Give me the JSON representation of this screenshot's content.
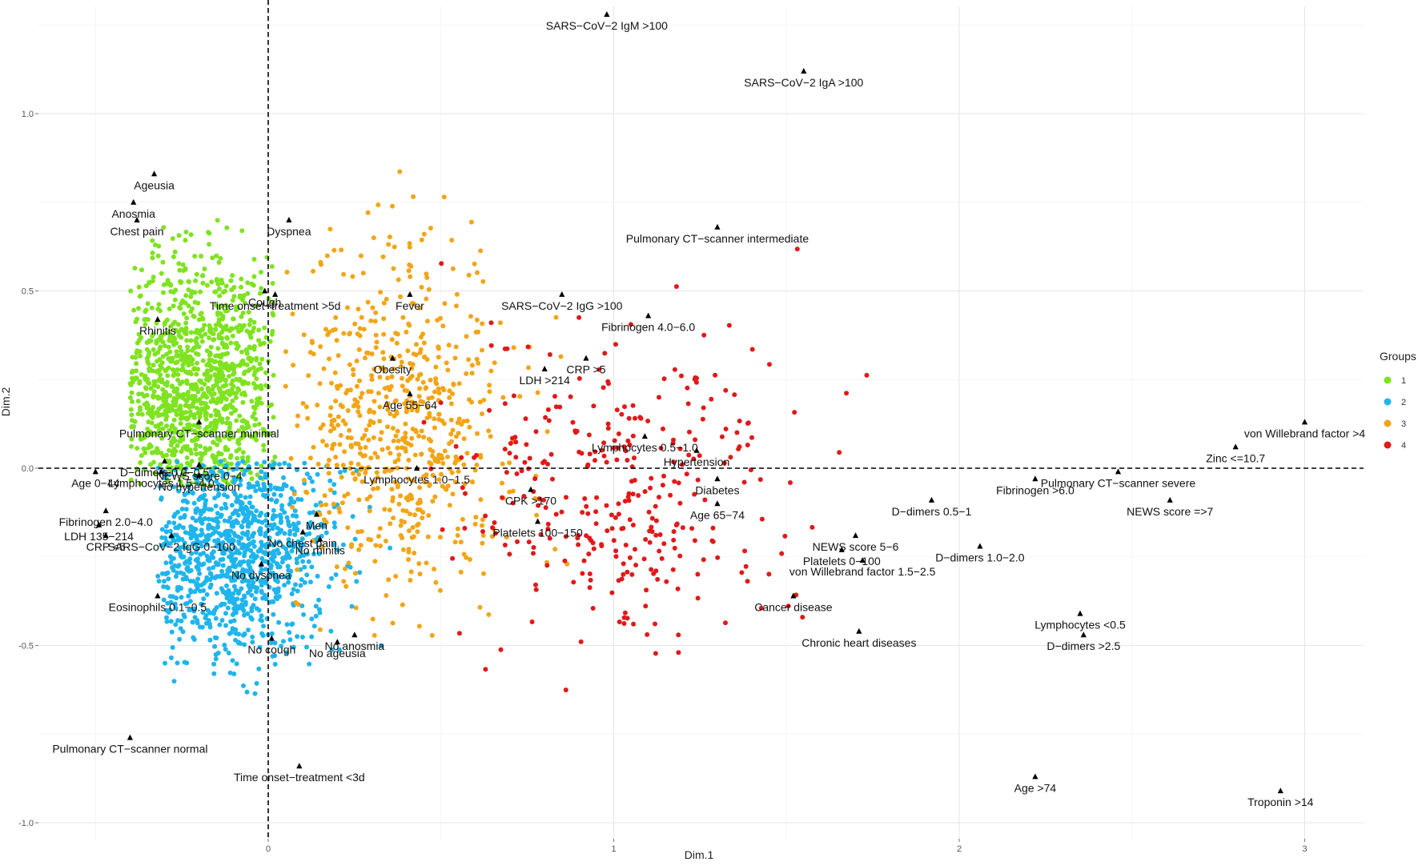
{
  "chart_data": {
    "type": "scatter",
    "xlabel": "Dim.1",
    "ylabel": "Dim.2",
    "xlim": [
      -0.72,
      3.2
    ],
    "ylim": [
      -1.02,
      1.28
    ],
    "xticks": [
      0,
      1,
      2,
      3
    ],
    "yticks": [
      1.0,
      0.5,
      0.0,
      -0.5,
      -1.0
    ],
    "xtick_labels": [
      "0",
      "1",
      "2",
      "3"
    ],
    "ytick_labels": [
      "1.0",
      "0.5",
      "0.0",
      "-0.5",
      "-1.0"
    ],
    "grid": true,
    "reference_lines": {
      "x": 0,
      "y": 0,
      "style": "dashed"
    },
    "legend": {
      "title": "Groups",
      "position": "right",
      "entries": [
        {
          "label": "1",
          "color": "#7ee320"
        },
        {
          "label": "2",
          "color": "#1fb5ec"
        },
        {
          "label": "3",
          "color": "#f2a516"
        },
        {
          "label": "4",
          "color": "#e11919"
        }
      ]
    },
    "group_clouds": [
      {
        "group": "1",
        "color": "#7ee320",
        "n": 1100,
        "center": [
          -0.22,
          0.22
        ],
        "spread": [
          0.14,
          0.18
        ],
        "x_range": [
          -0.4,
          0.02
        ],
        "y_range": [
          -0.05,
          0.7
        ]
      },
      {
        "group": "2",
        "color": "#1fb5ec",
        "n": 1000,
        "center": [
          -0.1,
          -0.23
        ],
        "spread": [
          0.15,
          0.15
        ],
        "x_range": [
          -0.32,
          0.38
        ],
        "y_range": [
          -0.67,
          0.02
        ]
      },
      {
        "group": "3",
        "color": "#f2a516",
        "n": 650,
        "center": [
          0.38,
          0.12
        ],
        "spread": [
          0.18,
          0.25
        ],
        "x_range": [
          0.05,
          0.92
        ],
        "y_range": [
          -0.48,
          0.94
        ]
      },
      {
        "group": "4",
        "color": "#e11919",
        "n": 330,
        "center": [
          1.05,
          -0.05
        ],
        "spread": [
          0.26,
          0.22
        ],
        "x_range": [
          0.45,
          1.98
        ],
        "y_range": [
          -0.65,
          0.72
        ]
      }
    ],
    "annotations": [
      {
        "label": "SARS−CoV−2 IgM >100",
        "x": 0.98,
        "y": 1.28
      },
      {
        "label": "SARS−CoV−2 IgA >100",
        "x": 1.55,
        "y": 1.12
      },
      {
        "label": "Ageusia",
        "x": -0.33,
        "y": 0.83
      },
      {
        "label": "Anosmia",
        "x": -0.39,
        "y": 0.75
      },
      {
        "label": "Chest pain",
        "x": -0.38,
        "y": 0.7
      },
      {
        "label": "Dyspnea",
        "x": 0.06,
        "y": 0.7
      },
      {
        "label": "Pulmonary CT−scanner intermediate",
        "x": 1.3,
        "y": 0.68
      },
      {
        "label": "Cough",
        "x": -0.01,
        "y": 0.5
      },
      {
        "label": "Time onset−treatment >5d",
        "x": 0.02,
        "y": 0.49
      },
      {
        "label": "Fever",
        "x": 0.41,
        "y": 0.49
      },
      {
        "label": "Rhinitis",
        "x": -0.32,
        "y": 0.42
      },
      {
        "label": "SARS−CoV−2 IgG >100",
        "x": 0.85,
        "y": 0.49
      },
      {
        "label": "Fibrinogen 4.0−6.0",
        "x": 1.1,
        "y": 0.43
      },
      {
        "label": "CRP >5",
        "x": 0.92,
        "y": 0.31
      },
      {
        "label": "Obesity",
        "x": 0.36,
        "y": 0.31
      },
      {
        "label": "LDH >214",
        "x": 0.8,
        "y": 0.28
      },
      {
        "label": "Age 55−64",
        "x": 0.41,
        "y": 0.21
      },
      {
        "label": "Lymphocytes  0.5−1.0",
        "x": 1.09,
        "y": 0.09
      },
      {
        "label": "Pulmonary CT−scanner minimal",
        "x": -0.2,
        "y": 0.13
      },
      {
        "label": "D−dimers 0.0−0.5",
        "x": -0.3,
        "y": 0.02
      },
      {
        "label": "NEWS score 0−4",
        "x": -0.2,
        "y": 0.01
      },
      {
        "label": "Lymphocytes  1.0−1.5",
        "x": 0.43,
        "y": 0.0
      },
      {
        "label": "Hypertension",
        "x": 1.24,
        "y": 0.05
      },
      {
        "label": "Age 0−44",
        "x": -0.5,
        "y": -0.01
      },
      {
        "label": "Lymphocytes  1.5−4.0",
        "x": -0.31,
        "y": -0.01
      },
      {
        "label": "No hypertension",
        "x": -0.2,
        "y": -0.02
      },
      {
        "label": "Diabetes",
        "x": 1.3,
        "y": -0.03
      },
      {
        "label": "CPK >170",
        "x": 0.76,
        "y": -0.06
      },
      {
        "label": "Age 65−74",
        "x": 1.3,
        "y": -0.1
      },
      {
        "label": "Fibrinogen 2.0−4.0",
        "x": -0.47,
        "y": -0.12
      },
      {
        "label": "D−dimers 0.5−1",
        "x": 1.92,
        "y": -0.09
      },
      {
        "label": "Fibrinogen >6.0",
        "x": 2.22,
        "y": -0.03
      },
      {
        "label": "Pulmonary CT−scanner severe",
        "x": 2.46,
        "y": -0.01
      },
      {
        "label": "von Willebrand factor  >4",
        "x": 3.0,
        "y": 0.13
      },
      {
        "label": "Zinc <=10.7",
        "x": 2.8,
        "y": 0.06
      },
      {
        "label": "NEWS score =>7",
        "x": 2.61,
        "y": -0.09
      },
      {
        "label": "Men",
        "x": 0.14,
        "y": -0.13
      },
      {
        "label": "LDH 135−214",
        "x": -0.49,
        "y": -0.16
      },
      {
        "label": "Platelets 100−150",
        "x": 0.78,
        "y": -0.15
      },
      {
        "label": "No chest pain",
        "x": 0.1,
        "y": -0.18
      },
      {
        "label": "CRP <5",
        "x": -0.47,
        "y": -0.19
      },
      {
        "label": "SARS−CoV−2 IgG 0−100",
        "x": -0.28,
        "y": -0.19
      },
      {
        "label": "No rhinitis",
        "x": 0.15,
        "y": -0.2
      },
      {
        "label": "NEWS score 5−6",
        "x": 1.7,
        "y": -0.19
      },
      {
        "label": "D−dimers 1.0−2.0",
        "x": 2.06,
        "y": -0.22
      },
      {
        "label": "Platelets 0−100",
        "x": 1.66,
        "y": -0.23
      },
      {
        "label": "von Willebrand factor 1.5−2.5",
        "x": 1.72,
        "y": -0.26
      },
      {
        "label": "No dyspnea",
        "x": -0.02,
        "y": -0.27
      },
      {
        "label": "Eosinophils  0.1−0.5",
        "x": -0.32,
        "y": -0.36
      },
      {
        "label": "Cancer disease",
        "x": 1.52,
        "y": -0.36
      },
      {
        "label": "Lymphocytes <0.5",
        "x": 2.35,
        "y": -0.41
      },
      {
        "label": "No anosmia",
        "x": 0.25,
        "y": -0.47
      },
      {
        "label": "Chronic heart diseases",
        "x": 1.71,
        "y": -0.46
      },
      {
        "label": "D−dimers >2.5",
        "x": 2.36,
        "y": -0.47
      },
      {
        "label": "No cough",
        "x": 0.01,
        "y": -0.48
      },
      {
        "label": "No ageusia",
        "x": 0.2,
        "y": -0.49
      },
      {
        "label": "Pulmonary CT−scanner normal",
        "x": -0.4,
        "y": -0.76
      },
      {
        "label": "Time onset−treatment <3d",
        "x": 0.09,
        "y": -0.84
      },
      {
        "label": "Age >74",
        "x": 2.22,
        "y": -0.87
      },
      {
        "label": "Troponin >14",
        "x": 2.93,
        "y": -0.91
      }
    ]
  }
}
